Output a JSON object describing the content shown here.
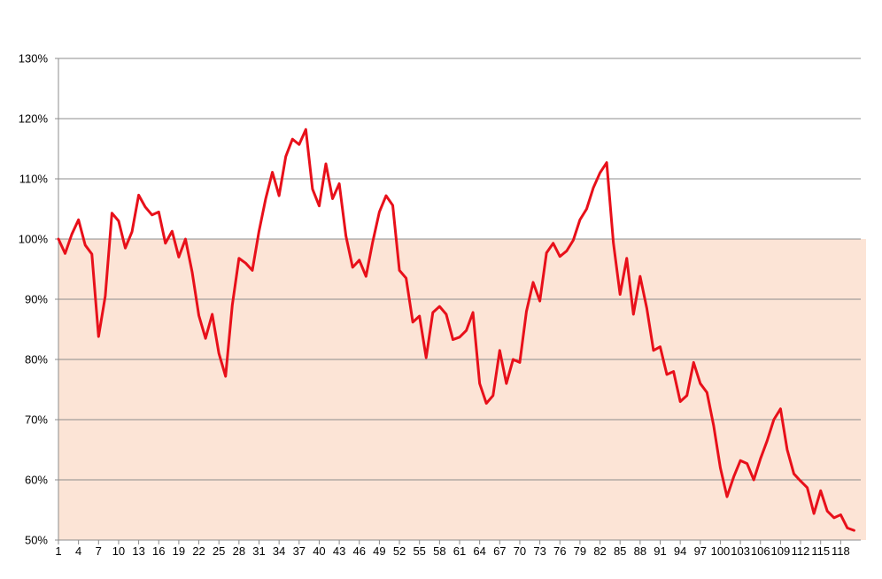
{
  "chart_data": {
    "type": "line",
    "title": "",
    "xlabel": "",
    "ylabel": "",
    "ylim": [
      0.5,
      1.3
    ],
    "grid": true,
    "y_ticks": [
      "50%",
      "60%",
      "70%",
      "80%",
      "90%",
      "100%",
      "110%",
      "120%",
      "130%"
    ],
    "x_ticks": [
      "1",
      "4",
      "7",
      "10",
      "13",
      "16",
      "19",
      "22",
      "25",
      "28",
      "31",
      "34",
      "37",
      "40",
      "43",
      "46",
      "49",
      "52",
      "55",
      "58",
      "61",
      "64",
      "67",
      "70",
      "73",
      "76",
      "79",
      "82",
      "85",
      "88",
      "91",
      "94",
      "97",
      "100",
      "103",
      "106",
      "109",
      "112",
      "115",
      "118"
    ],
    "shaded_band": {
      "from": 0.5,
      "to": 1.0,
      "color": "#fce4d6"
    },
    "colors": {
      "line": "#e8101a",
      "grid": "#8c8c8c",
      "axis": "#8c8c8c"
    },
    "series": [
      {
        "values": [
          1.0,
          0.976,
          1.008,
          1.032,
          0.99,
          0.975,
          0.838,
          0.905,
          1.043,
          1.03,
          0.985,
          1.012,
          1.073,
          1.053,
          1.04,
          1.045,
          0.993,
          1.013,
          0.97,
          1.0,
          0.945,
          0.873,
          0.835,
          0.875,
          0.81,
          0.772,
          0.89,
          0.968,
          0.96,
          0.948,
          1.013,
          1.067,
          1.111,
          1.072,
          1.137,
          1.166,
          1.157,
          1.182,
          1.083,
          1.055,
          1.125,
          1.067,
          1.092,
          1.005,
          0.953,
          0.965,
          0.938,
          0.995,
          1.045,
          1.072,
          1.056,
          0.948,
          0.935,
          0.862,
          0.872,
          0.803,
          0.878,
          0.888,
          0.875,
          0.833,
          0.837,
          0.848,
          0.878,
          0.76,
          0.727,
          0.74,
          0.815,
          0.76,
          0.8,
          0.795,
          0.88,
          0.928,
          0.897,
          0.977,
          0.993,
          0.971,
          0.98,
          0.998,
          1.032,
          1.05,
          1.085,
          1.11,
          1.127,
          0.994,
          0.908,
          0.968,
          0.875,
          0.938,
          0.885,
          0.815,
          0.821,
          0.775,
          0.78,
          0.73,
          0.74,
          0.795,
          0.76,
          0.745,
          0.69,
          0.62,
          0.572,
          0.605,
          0.632,
          0.627,
          0.6,
          0.635,
          0.665,
          0.7,
          0.718,
          0.65,
          0.61,
          0.598,
          0.587,
          0.544,
          0.582,
          0.548,
          0.537,
          0.542,
          0.52,
          0.516
        ]
      }
    ]
  }
}
